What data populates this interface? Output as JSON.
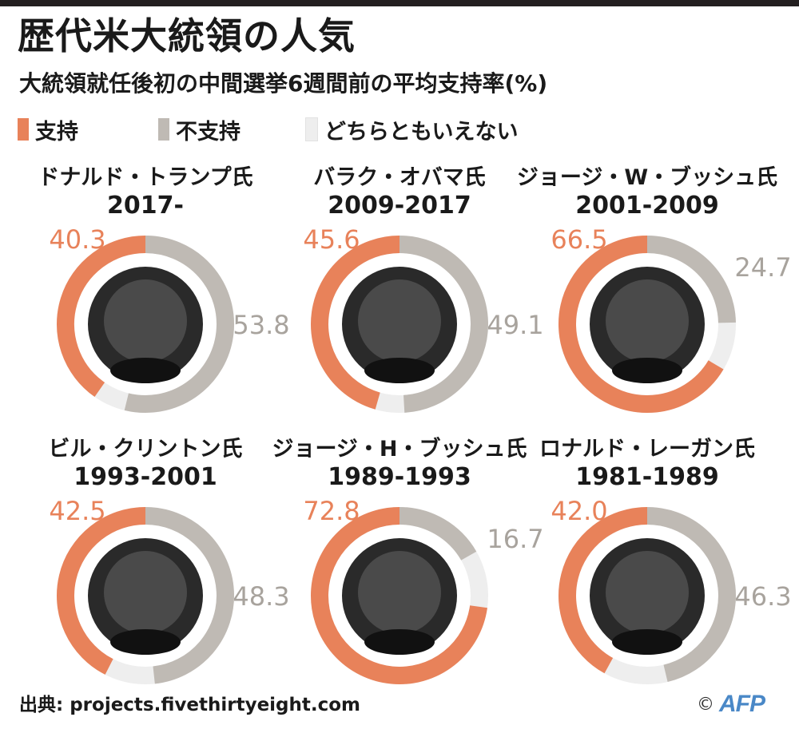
{
  "title": "歴代米大統領の人気",
  "subtitle": "大統領就任後初の中間選挙6週間前の平均支持率(%)",
  "legend": [
    {
      "label": "支持",
      "color": "#e8825a"
    },
    {
      "label": "不支持",
      "color": "#bfbab4"
    },
    {
      "label": "どちらともいえない",
      "color": "#eeeeee"
    }
  ],
  "chart_data": {
    "type": "pie",
    "variant": "donut",
    "title": "歴代米大統領の人気",
    "subtitle": "大統領就任後初の中間選挙6週間前の平均支持率(%)",
    "series_names": [
      "支持",
      "不支持",
      "どちらともいえない"
    ],
    "colors": {
      "approve": "#e8825a",
      "disapprove": "#bfbab4",
      "neutral": "#eeeeee"
    },
    "panels": [
      {
        "name": "ドナルド・トランプ氏",
        "years": "2017-",
        "approve": 40.3,
        "disapprove": 53.8,
        "approve_label": "40.3",
        "disapprove_label": "53.8"
      },
      {
        "name": "バラク・オバマ氏",
        "years": "2009-2017",
        "approve": 45.6,
        "disapprove": 49.1,
        "approve_label": "45.6",
        "disapprove_label": "49.1"
      },
      {
        "name": "ジョージ・W・ブッシュ氏",
        "years": "2001-2009",
        "approve": 66.5,
        "disapprove": 24.7,
        "approve_label": "66.5",
        "disapprove_label": "24.7"
      },
      {
        "name": "ビル・クリントン氏",
        "years": "1993-2001",
        "approve": 42.5,
        "disapprove": 48.3,
        "approve_label": "42.5",
        "disapprove_label": "48.3"
      },
      {
        "name": "ジョージ・H・ブッシュ氏",
        "years": "1989-1993",
        "approve": 72.8,
        "disapprove": 16.7,
        "approve_label": "72.8",
        "disapprove_label": "16.7"
      },
      {
        "name": "ロナルド・レーガン氏",
        "years": "1981-1989",
        "approve": 42.0,
        "disapprove": 46.3,
        "approve_label": "42.0",
        "disapprove_label": "46.3"
      }
    ]
  },
  "source": "出典: projects.fivethirtyeight.com",
  "credit": {
    "copyright": "©",
    "agency": "AFP"
  }
}
